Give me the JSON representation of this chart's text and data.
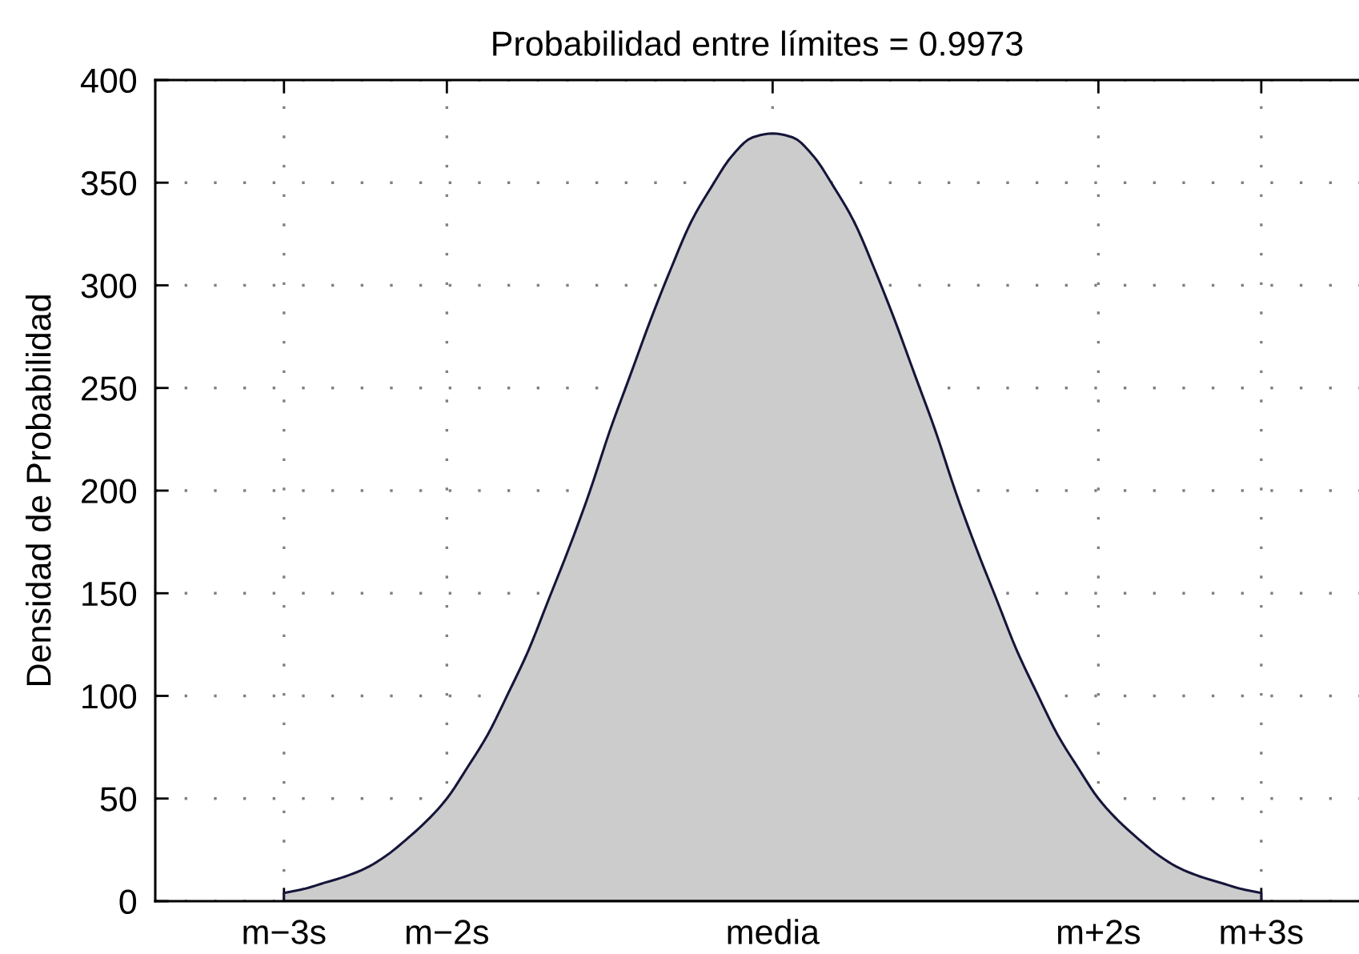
{
  "chart_data": {
    "type": "area",
    "title": "Probabilidad entre límites = 0.9973",
    "ylabel": "Densidad de Probabilidad",
    "categories": [
      "m−3s",
      null,
      null,
      null,
      null,
      null,
      null,
      null,
      "m−2s",
      null,
      null,
      null,
      null,
      null,
      null,
      null,
      null,
      null,
      null,
      null,
      null,
      null,
      null,
      null,
      "media",
      null,
      null,
      null,
      null,
      null,
      null,
      null,
      null,
      null,
      null,
      null,
      null,
      null,
      null,
      null,
      "m+2s",
      null,
      null,
      null,
      null,
      null,
      null,
      null,
      "m+3s"
    ],
    "series": [
      {
        "color": "#cccccc",
        "values": [
          4,
          6,
          9,
          12,
          16,
          22,
          30,
          39,
          50,
          65,
          81,
          101,
          122,
          147,
          172,
          199,
          229,
          256,
          283,
          308,
          331,
          348,
          363,
          372,
          374,
          372,
          363,
          348,
          331,
          308,
          283,
          256,
          229,
          199,
          172,
          147,
          122,
          101,
          81,
          65,
          50,
          39,
          30,
          22,
          16,
          12,
          9,
          6,
          4
        ]
      }
    ],
    "ylim": [
      0,
      400
    ],
    "yticks": [
      0,
      50,
      100,
      150,
      200,
      250,
      300,
      350,
      400
    ],
    "grid": true
  }
}
